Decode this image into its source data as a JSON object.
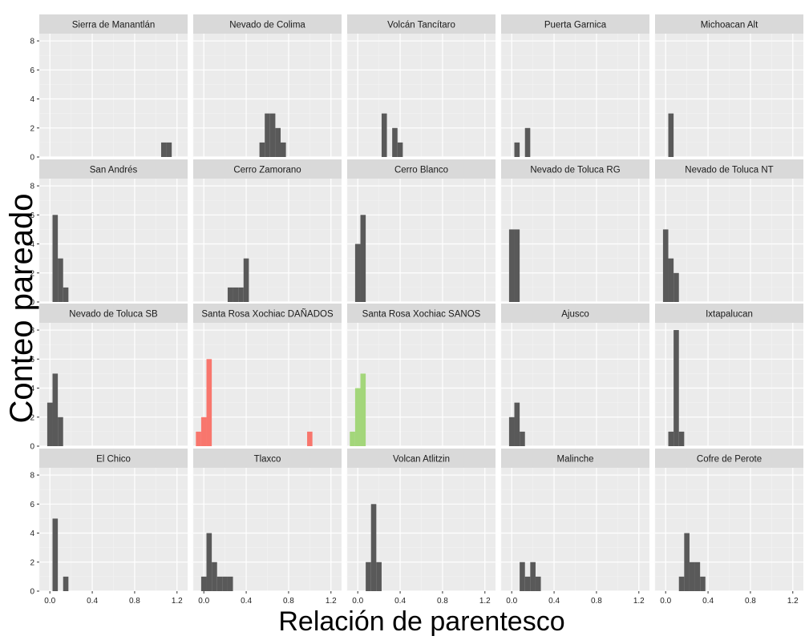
{
  "chart_data": {
    "type": "bar",
    "layout": "facet-grid",
    "rows": 4,
    "cols": 5,
    "xlabel": "Relación de parentesco",
    "ylabel": "Conteo pareado",
    "xlim": [
      -0.1,
      1.3
    ],
    "ylim": [
      0,
      8.5
    ],
    "xticks": [
      "0.0",
      "0.4",
      "0.8",
      "1.2"
    ],
    "xtick_values": [
      0,
      0.4,
      0.8,
      1.2
    ],
    "yticks": [
      "0",
      "2",
      "4",
      "6",
      "8"
    ],
    "ytick_values": [
      0,
      2,
      4,
      6,
      8
    ],
    "bin_width": 0.05,
    "grid": true,
    "legend": "none",
    "colors": {
      "default": "#595959",
      "damaged": "#f8766d",
      "healthy": "#a3d67a",
      "panel_bg": "#ebebeb",
      "strip_bg": "#d9d9d9",
      "grid_major": "#ffffff",
      "grid_minor": "#f3f3f3"
    },
    "panels": [
      {
        "title": "Sierra de Manantlán",
        "color": "default",
        "bins": [
          {
            "x": 1.075,
            "count": 1
          },
          {
            "x": 1.125,
            "count": 1
          }
        ]
      },
      {
        "title": "Nevado de Colima",
        "color": "default",
        "bins": [
          {
            "x": 0.55,
            "count": 1
          },
          {
            "x": 0.6,
            "count": 3
          },
          {
            "x": 0.65,
            "count": 3
          },
          {
            "x": 0.7,
            "count": 2
          },
          {
            "x": 0.75,
            "count": 1
          }
        ]
      },
      {
        "title": "Volcán Tancítaro",
        "color": "default",
        "bins": [
          {
            "x": 0.25,
            "count": 3
          },
          {
            "x": 0.35,
            "count": 2
          },
          {
            "x": 0.4,
            "count": 1
          }
        ]
      },
      {
        "title": "Puerta Garnica",
        "color": "default",
        "bins": [
          {
            "x": 0.05,
            "count": 1
          },
          {
            "x": 0.15,
            "count": 2
          }
        ]
      },
      {
        "title": "Michoacan Alt",
        "color": "default",
        "bins": [
          {
            "x": 0.05,
            "count": 3
          }
        ]
      },
      {
        "title": "San Andrés",
        "color": "default",
        "bins": [
          {
            "x": 0.05,
            "count": 6
          },
          {
            "x": 0.1,
            "count": 3
          },
          {
            "x": 0.15,
            "count": 1
          }
        ]
      },
      {
        "title": "Cerro Zamorano",
        "color": "default",
        "bins": [
          {
            "x": 0.25,
            "count": 1
          },
          {
            "x": 0.3,
            "count": 1
          },
          {
            "x": 0.35,
            "count": 1
          },
          {
            "x": 0.4,
            "count": 3
          }
        ]
      },
      {
        "title": "Cerro Blanco",
        "color": "default",
        "bins": [
          {
            "x": 0.0,
            "count": 4
          },
          {
            "x": 0.05,
            "count": 6
          }
        ]
      },
      {
        "title": "Nevado de Toluca RG",
        "color": "default",
        "bins": [
          {
            "x": 0.0,
            "count": 5
          },
          {
            "x": 0.05,
            "count": 5
          }
        ]
      },
      {
        "title": "Nevado de Toluca NT",
        "color": "default",
        "bins": [
          {
            "x": 0.0,
            "count": 5
          },
          {
            "x": 0.05,
            "count": 3
          },
          {
            "x": 0.1,
            "count": 2
          }
        ]
      },
      {
        "title": "Nevado de Toluca SB",
        "color": "default",
        "bins": [
          {
            "x": 0.0,
            "count": 3
          },
          {
            "x": 0.05,
            "count": 5
          },
          {
            "x": 0.1,
            "count": 2
          }
        ]
      },
      {
        "title": "Santa Rosa Xochiac DAÑADOS",
        "color": "damaged",
        "bins": [
          {
            "x": -0.05,
            "count": 1
          },
          {
            "x": 0.0,
            "count": 2
          },
          {
            "x": 0.05,
            "count": 6
          },
          {
            "x": 1.0,
            "count": 1
          }
        ]
      },
      {
        "title": "Santa Rosa Xochiac SANOS",
        "color": "healthy",
        "bins": [
          {
            "x": -0.05,
            "count": 1
          },
          {
            "x": 0.0,
            "count": 4
          },
          {
            "x": 0.05,
            "count": 5
          }
        ]
      },
      {
        "title": "Ajusco",
        "color": "default",
        "bins": [
          {
            "x": 0.0,
            "count": 2
          },
          {
            "x": 0.05,
            "count": 3
          },
          {
            "x": 0.1,
            "count": 1
          }
        ]
      },
      {
        "title": "Ixtapalucan",
        "color": "default",
        "bins": [
          {
            "x": 0.05,
            "count": 1
          },
          {
            "x": 0.1,
            "count": 8
          },
          {
            "x": 0.15,
            "count": 1
          }
        ]
      },
      {
        "title": "El Chico",
        "color": "default",
        "bins": [
          {
            "x": 0.05,
            "count": 5
          },
          {
            "x": 0.15,
            "count": 1
          }
        ]
      },
      {
        "title": "Tlaxco",
        "color": "default",
        "bins": [
          {
            "x": 0.0,
            "count": 1
          },
          {
            "x": 0.05,
            "count": 4
          },
          {
            "x": 0.1,
            "count": 2
          },
          {
            "x": 0.15,
            "count": 1
          },
          {
            "x": 0.2,
            "count": 1
          },
          {
            "x": 0.25,
            "count": 1
          }
        ]
      },
      {
        "title": "Volcan Atlitzin",
        "color": "default",
        "bins": [
          {
            "x": 0.1,
            "count": 2
          },
          {
            "x": 0.15,
            "count": 6
          },
          {
            "x": 0.2,
            "count": 2
          }
        ]
      },
      {
        "title": "Malinche",
        "color": "default",
        "bins": [
          {
            "x": 0.1,
            "count": 2
          },
          {
            "x": 0.15,
            "count": 1
          },
          {
            "x": 0.2,
            "count": 2
          },
          {
            "x": 0.25,
            "count": 1
          }
        ]
      },
      {
        "title": "Cofre de Perote",
        "color": "default",
        "bins": [
          {
            "x": 0.15,
            "count": 1
          },
          {
            "x": 0.2,
            "count": 4
          },
          {
            "x": 0.25,
            "count": 2
          },
          {
            "x": 0.3,
            "count": 2
          },
          {
            "x": 0.35,
            "count": 1
          }
        ]
      }
    ]
  }
}
